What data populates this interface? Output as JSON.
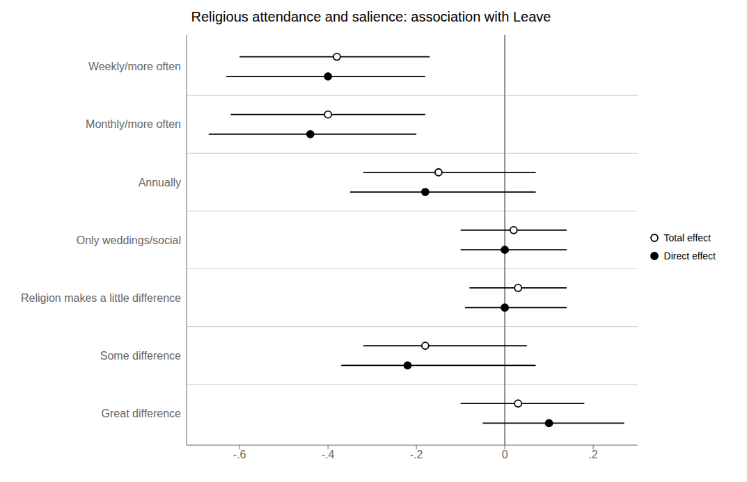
{
  "chart_data": {
    "type": "scatter",
    "title": "Religious attendance and salience: association with Leave",
    "categories": [
      "Weekly/more often",
      "Monthly/more often",
      "Annually",
      "Only weddings/social",
      "Religion makes a little difference",
      "Some difference",
      "Great difference"
    ],
    "series": [
      {
        "name": "Total effect",
        "color": "#000000",
        "marker": "circle_open",
        "values": [
          -0.38,
          -0.4,
          -0.15,
          0.02,
          0.03,
          -0.18,
          0.03
        ],
        "ci_low": [
          -0.6,
          -0.62,
          -0.32,
          -0.1,
          -0.08,
          -0.32,
          -0.1
        ],
        "ci_high": [
          -0.17,
          -0.18,
          0.07,
          0.14,
          0.14,
          0.05,
          0.18
        ]
      },
      {
        "name": "Direct effect",
        "color": "#000000",
        "marker": "circle",
        "values": [
          -0.4,
          -0.44,
          -0.18,
          0.0,
          0.0,
          -0.22,
          0.1
        ],
        "ci_low": [
          -0.63,
          -0.67,
          -0.35,
          -0.1,
          -0.09,
          -0.37,
          -0.05
        ],
        "ci_high": [
          -0.18,
          -0.2,
          0.07,
          0.14,
          0.14,
          0.07,
          0.27
        ]
      }
    ],
    "xlim": [
      -0.72,
      0.3
    ],
    "xticks": [
      {
        "value": -0.6,
        "label": "-.6"
      },
      {
        "value": -0.4,
        "label": "-.4"
      },
      {
        "value": -0.2,
        "label": "-.2"
      },
      0,
      {
        "value": 0.2,
        "label": ".2"
      }
    ],
    "grid": true,
    "legend": "right"
  }
}
